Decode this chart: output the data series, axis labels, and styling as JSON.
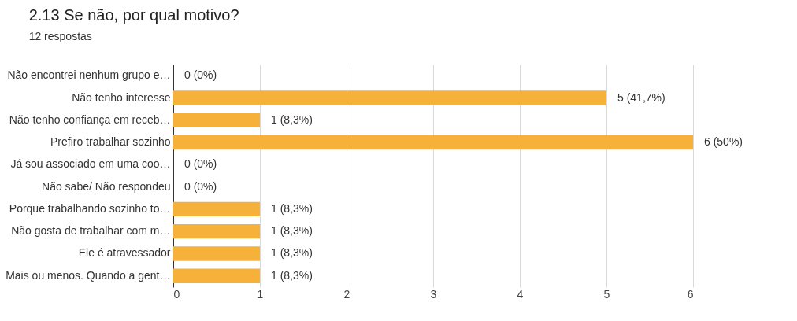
{
  "chart_data": {
    "type": "bar",
    "orientation": "horizontal",
    "title": "2.13  Se não, por qual motivo?",
    "subtitle": "12 respostas",
    "categories": [
      "Não encontrei nenhum grupo e…",
      "Não tenho interesse",
      "Não tenho confiança em receb…",
      "Prefiro trabalhar sozinho",
      "Já sou associado em uma coo…",
      "Não sabe/ Não respondeu",
      "Porque trabalhando sozinho to…",
      "Não gosta de trabalhar com m…",
      "Ele é atravessador",
      "Mais ou menos. Quando a gent…"
    ],
    "values": [
      0,
      5,
      1,
      6,
      0,
      0,
      1,
      1,
      1,
      1
    ],
    "value_labels": [
      "0 (0%)",
      "5 (41,7%)",
      "1 (8,3%)",
      "6 (50%)",
      "0 (0%)",
      "0 (0%)",
      "1 (8,3%)",
      "1 (8,3%)",
      "1 (8,3%)",
      "1 (8,3%)"
    ],
    "color": "#f6b13b",
    "xlim": [
      0,
      6
    ],
    "xticks": [
      0,
      1,
      2,
      3,
      4,
      5,
      6
    ],
    "grid": "x"
  }
}
